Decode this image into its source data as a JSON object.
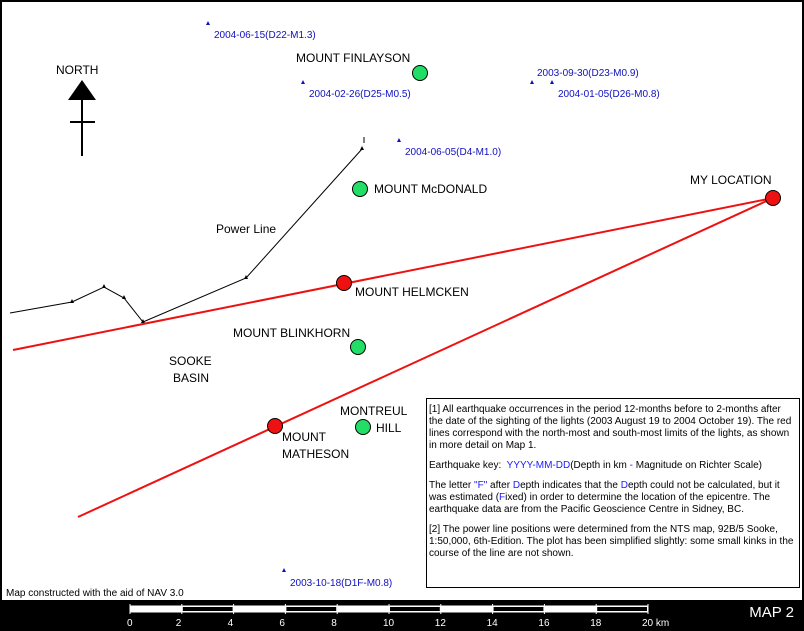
{
  "map": {
    "title": "MAP 2",
    "credit": "Map constructed with the aid of NAV 3.0",
    "north_label": "NORTH",
    "power_line_label": "Power Line",
    "places": [
      {
        "name": "MOUNT FINLAYSON",
        "kind": "mountain",
        "color": "#22dd66"
      },
      {
        "name": "MOUNT McDONALD",
        "kind": "mountain",
        "color": "#22dd66"
      },
      {
        "name": "MOUNT HELMCKEN",
        "kind": "sighting-limit",
        "color": "#ee1111"
      },
      {
        "name": "MOUNT BLINKHORN",
        "kind": "mountain",
        "color": "#22dd66"
      },
      {
        "name": "MONTREUL",
        "kind": "mountain-line1",
        "color": "#22dd66"
      },
      {
        "name": "HILL",
        "kind": "mountain-line2"
      },
      {
        "name": "MOUNT",
        "kind": "sighting-limit-line1",
        "color": "#ee1111"
      },
      {
        "name": "MATHESON",
        "kind": "sighting-limit-line2"
      },
      {
        "name": "MY LOCATION",
        "kind": "observer",
        "color": "#ee1111"
      },
      {
        "name": "SOOKE",
        "kind": "area-line1"
      },
      {
        "name": "BASIN",
        "kind": "area-line2"
      }
    ],
    "earthquakes": [
      "2004-06-15(D22-M1.3)",
      "2004-02-26(D25-M0.5)",
      "2003-09-30(D23-M0.9)",
      "2004-01-05(D26-M0.8)",
      "2004-06-05(D4-M1.0)",
      "2003-10-18(D1F-M0.8)"
    ],
    "scale": {
      "ticks": [
        "0",
        "2",
        "4",
        "6",
        "8",
        "10",
        "12",
        "14",
        "16",
        "18",
        "20 km"
      ]
    },
    "colors": {
      "sighting_lines": "#ee1111",
      "mountain_marker": "#22dd66",
      "earthquake_text": "#1010c0",
      "background": "#ffffff",
      "frame": "#000000"
    }
  },
  "notes": {
    "note1": "[1] All earthquake occurrences in the period 12-months before to 2-months after the date of the sighting of the lights (2003 August 19 to 2004 October 19). The red lines correspond with the north-most and south-most limits of the lights, as shown in more detail on Map 1.",
    "key_label": "Earthquake key:",
    "key_format": "YYYY-MM-DD",
    "key_depth": "(Depth in km",
    "key_dash": "-",
    "key_mag": "Magnitude on Richter Scale)",
    "fixed_1": "The letter",
    "fixed_f": "\"F\"",
    "fixed_2": "after",
    "fixed_d1": "D",
    "fixed_3": "epth indicates that the",
    "fixed_d2": "D",
    "fixed_4": "epth could not be calculated, but it was estimated (",
    "fixed_f2": "F",
    "fixed_5": "ixed) in order to determine the location of the epicentre. The earthquake data are from the Pacific Geoscience Centre in Sidney, BC.",
    "note2": "[2] The power line positions were determined from the NTS map, 92B/5 Sooke, 1:50,000, 6th-Edition. The plot has been simplified slightly: some small kinks in the course of the line are not shown."
  }
}
